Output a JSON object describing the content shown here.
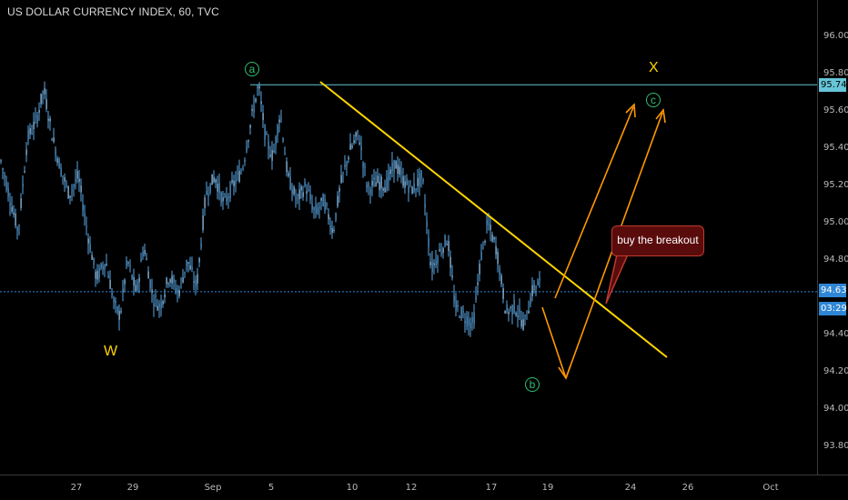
{
  "header": {
    "title": "US DOLLAR CURRENCY INDEX, 60, TVC"
  },
  "colors": {
    "background": "#000000",
    "candle": "#5aa9e6",
    "trendline": "#ffd500",
    "arrows": "#ff9800",
    "wave_green": "#2fbf71",
    "wave_yellow": "#ffd500",
    "horizontal_line": "#66c5d8",
    "current_price_line": "#2f86d6",
    "callout_fill": "#5a0c0c",
    "callout_border": "#c0392b"
  },
  "price_axis": {
    "labels": [
      "96.00",
      "95.80",
      "95.60",
      "95.40",
      "95.20",
      "95.00",
      "94.80",
      "94.40",
      "94.20",
      "94.00",
      "93.80"
    ],
    "tags": {
      "level": "95.74",
      "current": "94.63",
      "countdown": "03:29"
    }
  },
  "time_axis": {
    "labels": [
      "27",
      "29",
      "Sep",
      "5",
      "10",
      "12",
      "17",
      "19",
      "24",
      "26",
      "Oct"
    ]
  },
  "annotations": {
    "wave_w": "W",
    "wave_x": "X",
    "wave_a": "a",
    "wave_b": "b",
    "wave_c": "c",
    "callout": "buy the breakout"
  },
  "chart_data": {
    "type": "candlestick",
    "title": "US DOLLAR CURRENCY INDEX, 60, TVC",
    "ylim": [
      93.7,
      96.1
    ],
    "y_ticks": [
      93.8,
      94.0,
      94.2,
      94.4,
      94.8,
      95.0,
      95.2,
      95.4,
      95.6,
      95.8,
      96.0
    ],
    "x_ticks": [
      "27",
      "29",
      "Sep",
      "5",
      "10",
      "12",
      "17",
      "19",
      "24",
      "26",
      "Oct"
    ],
    "series_path": [
      [
        0,
        95.35
      ],
      [
        10,
        95.15
      ],
      [
        20,
        94.95
      ],
      [
        30,
        95.45
      ],
      [
        40,
        95.55
      ],
      [
        48,
        95.72
      ],
      [
        58,
        95.45
      ],
      [
        66,
        95.3
      ],
      [
        76,
        95.15
      ],
      [
        86,
        95.25
      ],
      [
        96,
        94.95
      ],
      [
        106,
        94.7
      ],
      [
        116,
        94.8
      ],
      [
        126,
        94.55
      ],
      [
        132,
        94.5
      ],
      [
        140,
        94.8
      ],
      [
        150,
        94.62
      ],
      [
        158,
        94.88
      ],
      [
        168,
        94.6
      ],
      [
        176,
        94.55
      ],
      [
        186,
        94.72
      ],
      [
        196,
        94.62
      ],
      [
        206,
        94.8
      ],
      [
        216,
        94.65
      ],
      [
        226,
        95.15
      ],
      [
        236,
        95.25
      ],
      [
        246,
        95.1
      ],
      [
        256,
        95.2
      ],
      [
        266,
        95.28
      ],
      [
        276,
        95.55
      ],
      [
        284,
        95.74
      ],
      [
        292,
        95.45
      ],
      [
        300,
        95.35
      ],
      [
        308,
        95.6
      ],
      [
        316,
        95.25
      ],
      [
        326,
        95.12
      ],
      [
        336,
        95.2
      ],
      [
        346,
        95.05
      ],
      [
        356,
        95.12
      ],
      [
        366,
        94.95
      ],
      [
        374,
        95.2
      ],
      [
        384,
        95.38
      ],
      [
        394,
        95.48
      ],
      [
        404,
        95.18
      ],
      [
        414,
        95.22
      ],
      [
        424,
        95.2
      ],
      [
        434,
        95.32
      ],
      [
        444,
        95.22
      ],
      [
        454,
        95.18
      ],
      [
        464,
        95.25
      ],
      [
        474,
        94.75
      ],
      [
        484,
        94.85
      ],
      [
        492,
        94.92
      ],
      [
        500,
        94.55
      ],
      [
        510,
        94.5
      ],
      [
        520,
        94.45
      ],
      [
        528,
        94.8
      ],
      [
        536,
        95.0
      ],
      [
        546,
        94.85
      ],
      [
        556,
        94.52
      ],
      [
        566,
        94.55
      ],
      [
        576,
        94.45
      ],
      [
        586,
        94.65
      ],
      [
        594,
        94.68
      ]
    ],
    "price_levels": {
      "horizontal_resistance": 95.74,
      "current_price": 94.63
    }
  }
}
